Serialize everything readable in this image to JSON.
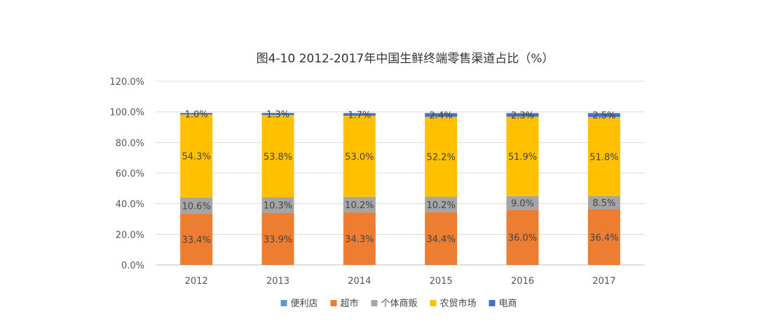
{
  "chart_data": {
    "type": "bar",
    "stacked": true,
    "title": "图4-10 2012-2017年中国生鲜终端零售渠道占比（%）",
    "categories": [
      "2012",
      "2013",
      "2014",
      "2015",
      "2016",
      "2017"
    ],
    "series": [
      {
        "name": "便利店",
        "color": "#5b9bd5",
        "values": [
          0.0,
          0.0,
          0.0,
          0.0,
          0.0,
          0.0
        ],
        "labels": [
          "",
          "",
          "",
          "",
          "",
          ""
        ]
      },
      {
        "name": "超市",
        "color": "#ed7d31",
        "values": [
          33.4,
          33.9,
          34.3,
          34.4,
          36.0,
          36.4
        ],
        "labels": [
          "33.4%",
          "33.9%",
          "34.3%",
          "34.4%",
          "36.0%",
          "36.4%"
        ]
      },
      {
        "name": "个体商贩",
        "color": "#a5a5a5",
        "values": [
          10.6,
          10.3,
          10.2,
          10.2,
          9.0,
          8.5
        ],
        "labels": [
          "10.6%",
          "10.3%",
          "10.2%",
          "10.2%",
          "9.0%",
          "8.5%"
        ]
      },
      {
        "name": "农贸市场",
        "color": "#ffc000",
        "values": [
          54.3,
          53.8,
          53.0,
          52.2,
          51.9,
          51.8
        ],
        "labels": [
          "54.3%",
          "53.8%",
          "53.0%",
          "52.2%",
          "51.9%",
          "51.8%"
        ]
      },
      {
        "name": "电商",
        "color": "#4472c4",
        "values": [
          1.0,
          1.3,
          1.7,
          2.4,
          2.3,
          2.5
        ],
        "labels": [
          "1.0%",
          "1.3%",
          "1.7%",
          "2.4%",
          "2.3%",
          "2.5%"
        ]
      }
    ],
    "yTicks": [
      "0.0%",
      "20.0%",
      "40.0%",
      "60.0%",
      "80.0%",
      "100.0%",
      "120.0%"
    ],
    "ylim": [
      0,
      120
    ],
    "grid": true,
    "legend": "bottom"
  }
}
